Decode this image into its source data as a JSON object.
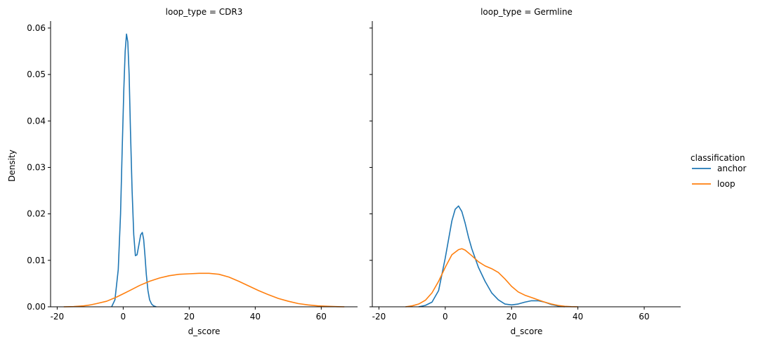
{
  "chart_data": {
    "type": "line",
    "chart_kind": "kde-facet-grid",
    "ylabel": "Density",
    "legend": {
      "title": "classification",
      "placement": "right",
      "entries": [
        {
          "name": "anchor",
          "color": "#1f77b4"
        },
        {
          "name": "loop",
          "color": "#ff7f0e"
        }
      ]
    },
    "xlim": [
      -22,
      71
    ],
    "ylim": [
      0,
      0.0615
    ],
    "x_ticks": [
      -20,
      0,
      20,
      40,
      60
    ],
    "y_ticks": [
      0.0,
      0.01,
      0.02,
      0.03,
      0.04,
      0.05,
      0.06
    ],
    "y_tick_labels": [
      "0.00",
      "0.01",
      "0.02",
      "0.03",
      "0.04",
      "0.05",
      "0.06"
    ],
    "grid": false,
    "panels": [
      {
        "title": "loop_type = CDR3",
        "xlabel": "d_score",
        "series": [
          {
            "name": "anchor",
            "color": "#1f77b4",
            "x": [
              -3.5,
              -2.5,
              -1.5,
              -0.8,
              -0.3,
              0.2,
              0.6,
              1.0,
              1.4,
              1.8,
              2.2,
              2.7,
              3.2,
              3.7,
              4.2,
              4.8,
              5.3,
              5.8,
              6.2,
              6.6,
              7.0,
              7.5,
              8.0,
              8.6,
              9.2,
              10.0
            ],
            "y": [
              0.0,
              0.0015,
              0.008,
              0.02,
              0.034,
              0.047,
              0.055,
              0.0587,
              0.057,
              0.05,
              0.038,
              0.025,
              0.0155,
              0.011,
              0.0112,
              0.0135,
              0.0155,
              0.016,
              0.0145,
              0.011,
              0.007,
              0.0035,
              0.0015,
              0.0006,
              0.0002,
              0.0
            ]
          },
          {
            "name": "loop",
            "color": "#ff7f0e",
            "x": [
              -18,
              -15,
              -12,
              -10,
              -8,
              -5,
              -2,
              0,
              2,
              5,
              8,
              11,
              14,
              17,
              20,
              23,
              26,
              29,
              32,
              35,
              38,
              41,
              44,
              47,
              50,
              53,
              56,
              59,
              62,
              65,
              67
            ],
            "y": [
              0.0,
              5e-05,
              0.0002,
              0.0004,
              0.0007,
              0.0012,
              0.0021,
              0.0028,
              0.0035,
              0.0046,
              0.0055,
              0.0062,
              0.0067,
              0.007,
              0.0071,
              0.0072,
              0.0072,
              0.007,
              0.0064,
              0.0055,
              0.0045,
              0.0035,
              0.0026,
              0.0018,
              0.0012,
              0.0007,
              0.0004,
              0.0002,
              0.0001,
              3e-05,
              0.0
            ]
          }
        ]
      },
      {
        "title": "loop_type = Germline",
        "xlabel": "d_score",
        "series": [
          {
            "name": "anchor",
            "color": "#1f77b4",
            "x": [
              -8,
              -6,
              -4,
              -2,
              0,
              1,
              2,
              3,
              4,
              5,
              6,
              7,
              8,
              10,
              12,
              14,
              16,
              18,
              20,
              22,
              24,
              26,
              28,
              30,
              32,
              34,
              36
            ],
            "y": [
              0.0,
              0.0003,
              0.001,
              0.0035,
              0.0105,
              0.0145,
              0.0185,
              0.021,
              0.0217,
              0.0205,
              0.018,
              0.015,
              0.0125,
              0.0085,
              0.0055,
              0.003,
              0.0015,
              0.0006,
              0.0004,
              0.0006,
              0.001,
              0.0013,
              0.0013,
              0.001,
              0.0005,
              0.0002,
              0.0
            ]
          },
          {
            "name": "loop",
            "color": "#ff7f0e",
            "x": [
              -12,
              -10,
              -8,
              -6,
              -4,
              -2,
              0,
              2,
              4,
              5,
              6,
              8,
              10,
              12,
              14,
              16,
              18,
              20,
              22,
              24,
              26,
              28,
              30,
              32,
              34,
              36,
              38,
              40
            ],
            "y": [
              0.0,
              0.0002,
              0.0006,
              0.0014,
              0.003,
              0.0055,
              0.0085,
              0.0112,
              0.0123,
              0.0125,
              0.0122,
              0.011,
              0.0097,
              0.0088,
              0.0082,
              0.0074,
              0.006,
              0.0044,
              0.0032,
              0.0025,
              0.002,
              0.0015,
              0.001,
              0.0006,
              0.0003,
              0.0001,
              3e-05,
              0.0
            ]
          }
        ]
      }
    ]
  }
}
